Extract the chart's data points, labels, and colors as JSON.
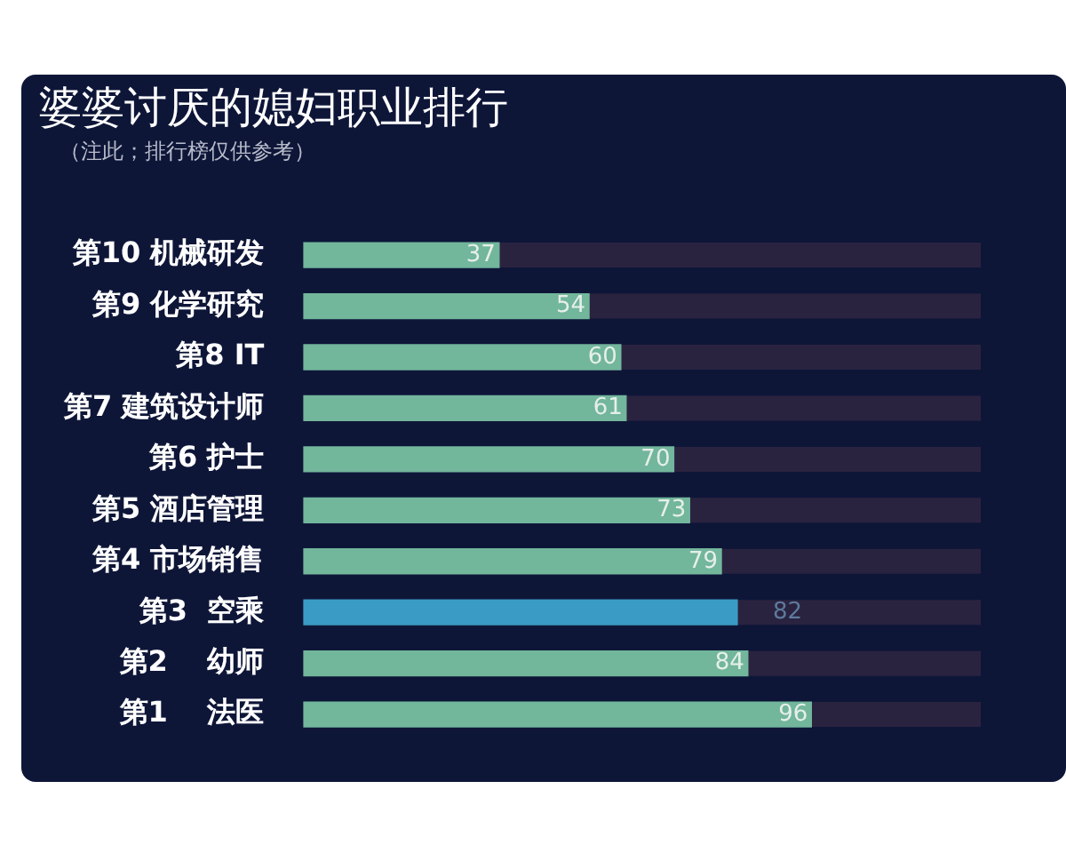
{
  "chart_data": {
    "type": "bar",
    "orientation": "horizontal",
    "title": "婆婆讨厌的媳妇职业排行",
    "subtitle": "（注此；排行榜仅供参考）",
    "categories": [
      "第10 机械研发",
      "第9 化学研究",
      "第8 IT",
      "第7 建筑设计师",
      "第6 护士",
      "第5 酒店管理",
      "第4 市场销售",
      "第3  空乘",
      "第2    幼师",
      "第1    法医"
    ],
    "values": [
      37,
      54,
      60,
      61,
      70,
      73,
      79,
      82,
      84,
      96
    ],
    "colors": [
      "#72b69c",
      "#72b69c",
      "#72b69c",
      "#72b69c",
      "#72b69c",
      "#72b69c",
      "#72b69c",
      "#3a9cc4",
      "#72b69c",
      "#72b69c"
    ],
    "data_labels": true,
    "grid": false,
    "legend": false,
    "tick_labels": "y"
  }
}
